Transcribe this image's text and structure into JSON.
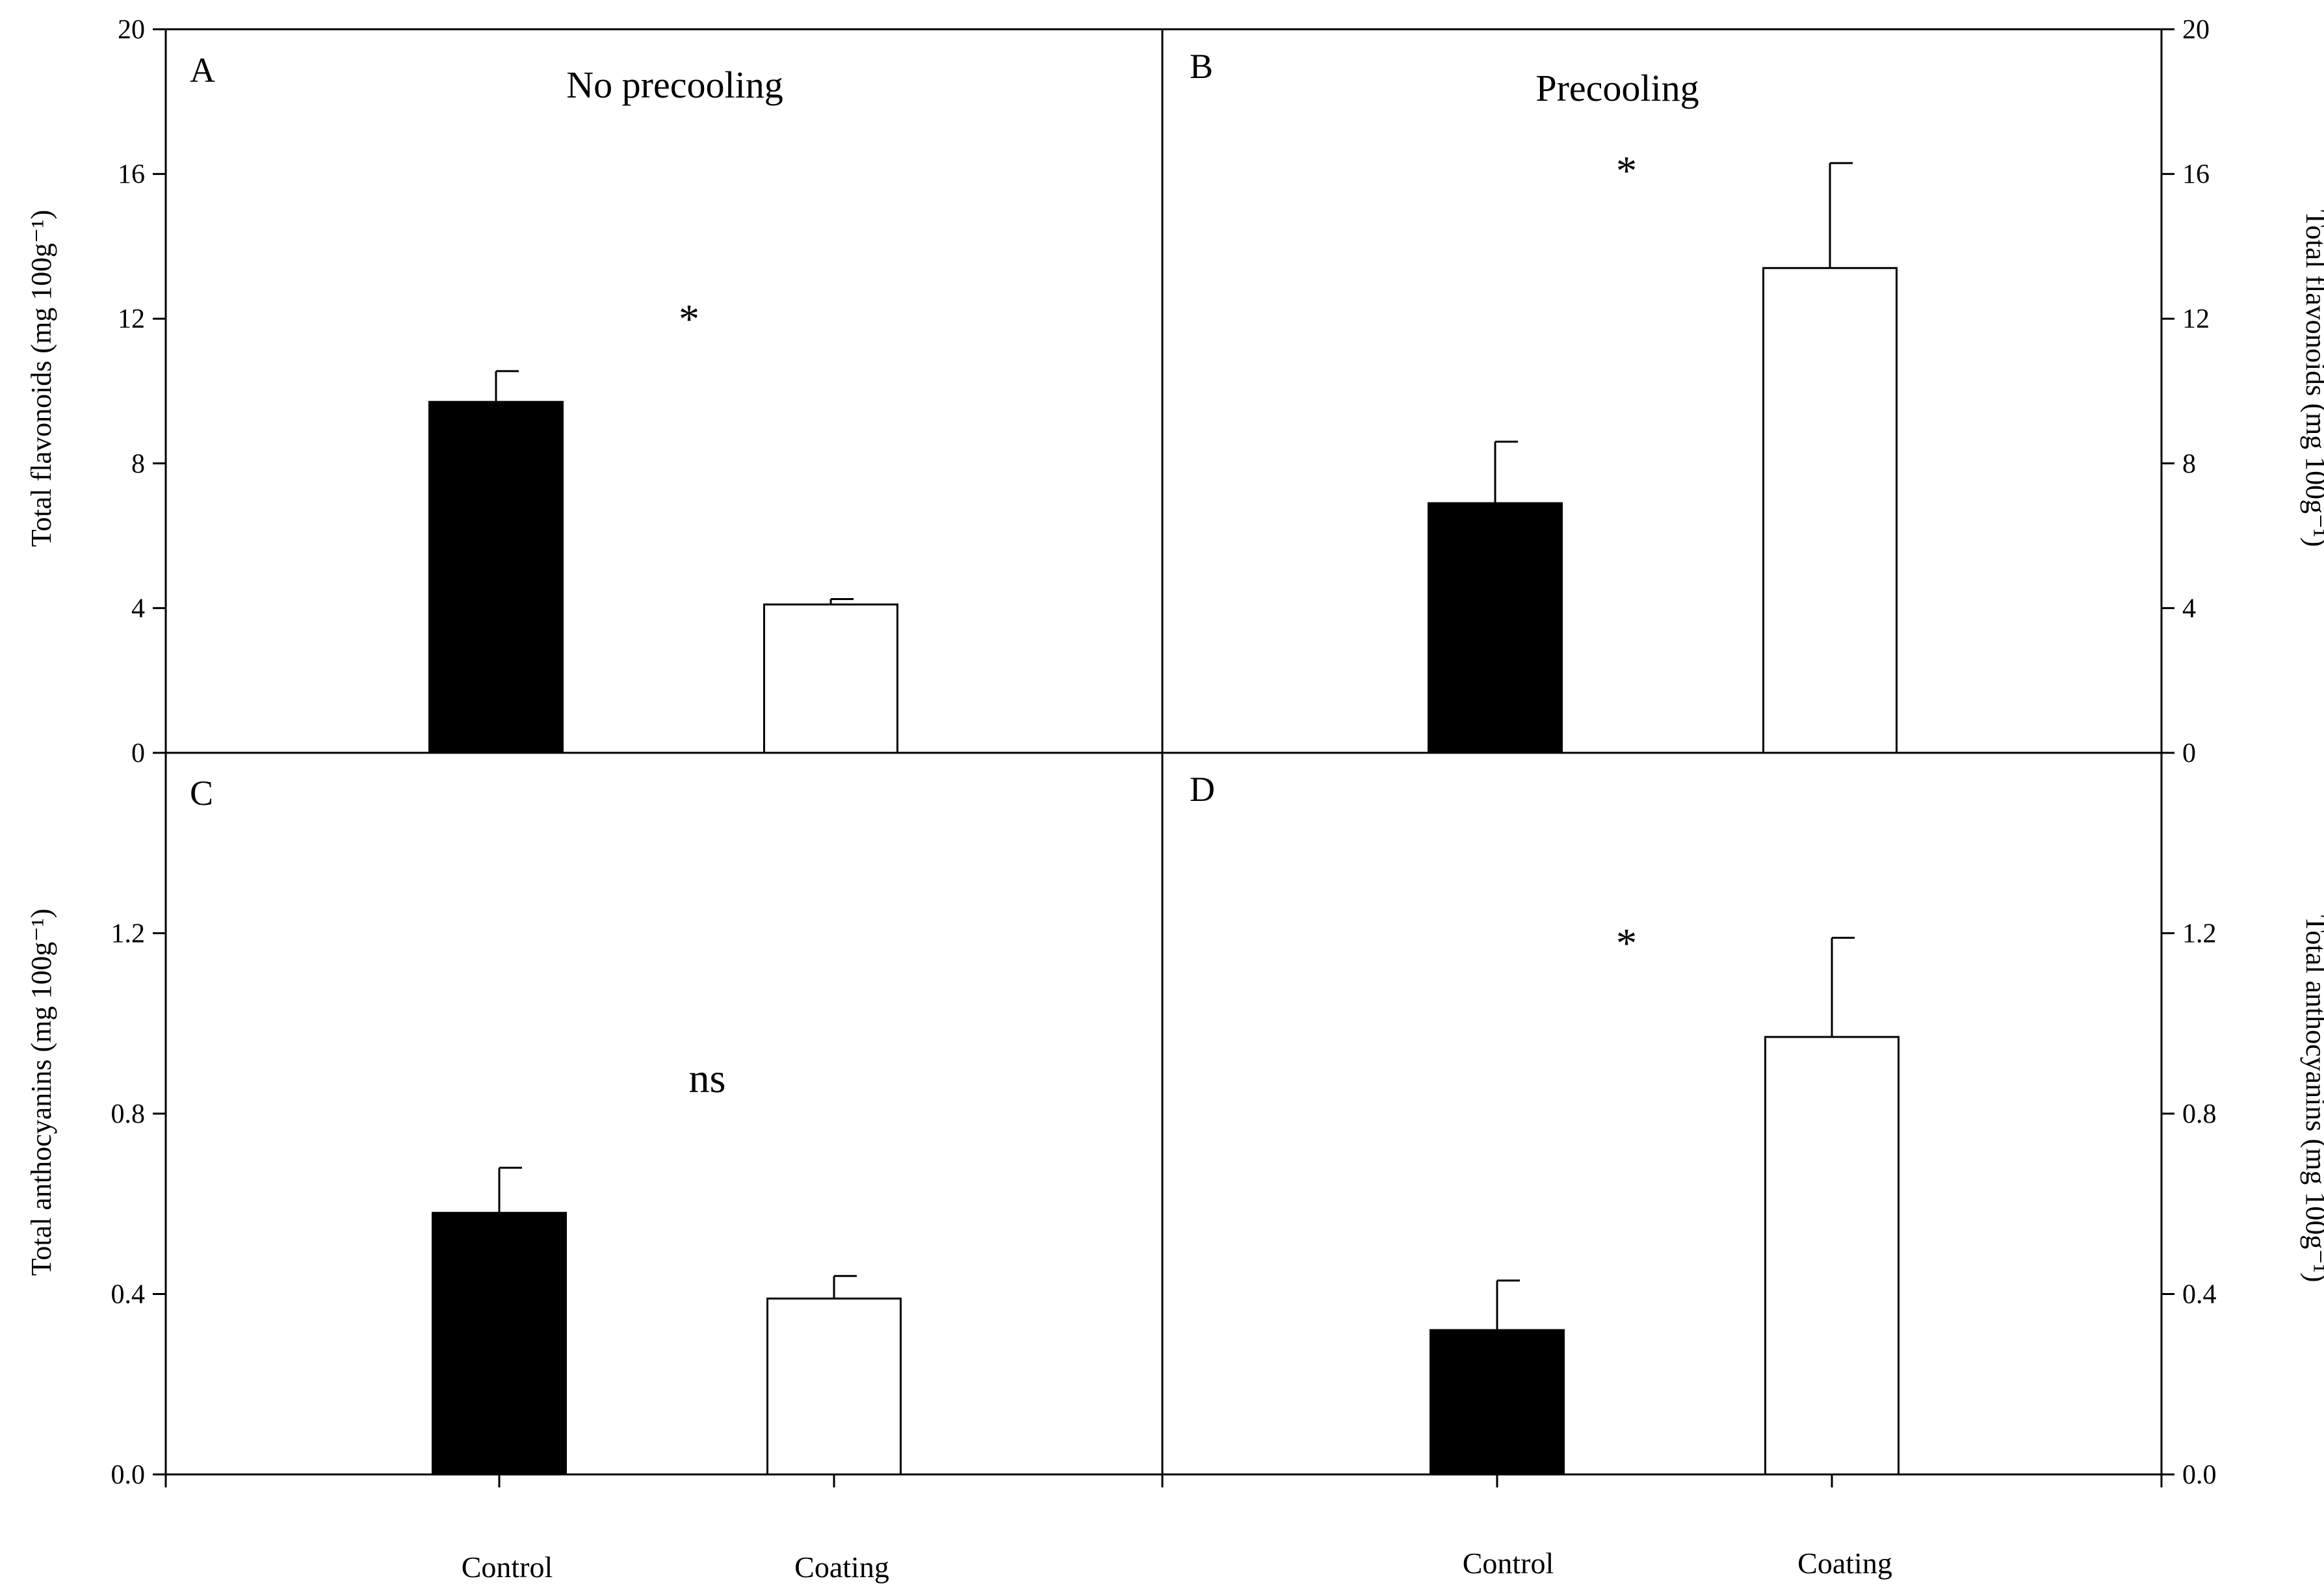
{
  "chart_data": [
    {
      "panel": "A",
      "type": "bar",
      "title": "No precooling",
      "ylabel": "Total flavonoids (mg 100g⁻¹)",
      "yaxis_side": "left",
      "ylim": [
        0,
        20
      ],
      "yticks": [
        "0",
        "4",
        "8",
        "12",
        "16",
        "20"
      ],
      "ytick_values": [
        0,
        4,
        8,
        12,
        16,
        20
      ],
      "categories": [
        "Control",
        "Coating"
      ],
      "values": [
        9.7,
        4.1
      ],
      "errors": [
        0.85,
        0.15
      ],
      "fills": [
        "#000000",
        "#ffffff"
      ],
      "significance": "*"
    },
    {
      "panel": "B",
      "type": "bar",
      "title": "Precooling",
      "ylabel": "Total flavonoids (mg 100g⁻¹)",
      "yaxis_side": "right",
      "ylim": [
        0,
        20
      ],
      "yticks": [
        "0",
        "4",
        "8",
        "12",
        "16",
        "20"
      ],
      "ytick_values": [
        0,
        4,
        8,
        12,
        16,
        20
      ],
      "categories": [
        "Control",
        "Coating"
      ],
      "values": [
        6.9,
        13.4
      ],
      "errors": [
        1.7,
        2.9
      ],
      "fills": [
        "#000000",
        "#ffffff"
      ],
      "significance": "*"
    },
    {
      "panel": "C",
      "type": "bar",
      "title": "",
      "ylabel": "Total anthocyanins (mg 100g⁻¹)",
      "yaxis_side": "left",
      "ylim": [
        0,
        1.6
      ],
      "yticks": [
        "0.0",
        "0.4",
        "0.8",
        "1.2"
      ],
      "ytick_values": [
        0,
        0.4,
        0.8,
        1.2
      ],
      "categories": [
        "Control",
        "Coating"
      ],
      "values": [
        0.58,
        0.39
      ],
      "errors": [
        0.1,
        0.05
      ],
      "fills": [
        "#000000",
        "#ffffff"
      ],
      "significance": "ns"
    },
    {
      "panel": "D",
      "type": "bar",
      "title": "",
      "ylabel": "Total anthocyanins (mg 100g⁻¹)",
      "yaxis_side": "right",
      "ylim": [
        0,
        1.6
      ],
      "yticks": [
        "0.0",
        "0.4",
        "0.8",
        "1.2"
      ],
      "ytick_values": [
        0,
        0.4,
        0.8,
        1.2
      ],
      "categories": [
        "Control",
        "Coating"
      ],
      "values": [
        0.32,
        0.97
      ],
      "errors": [
        0.11,
        0.22
      ],
      "fills": [
        "#000000",
        "#ffffff"
      ],
      "significance": "*"
    }
  ]
}
